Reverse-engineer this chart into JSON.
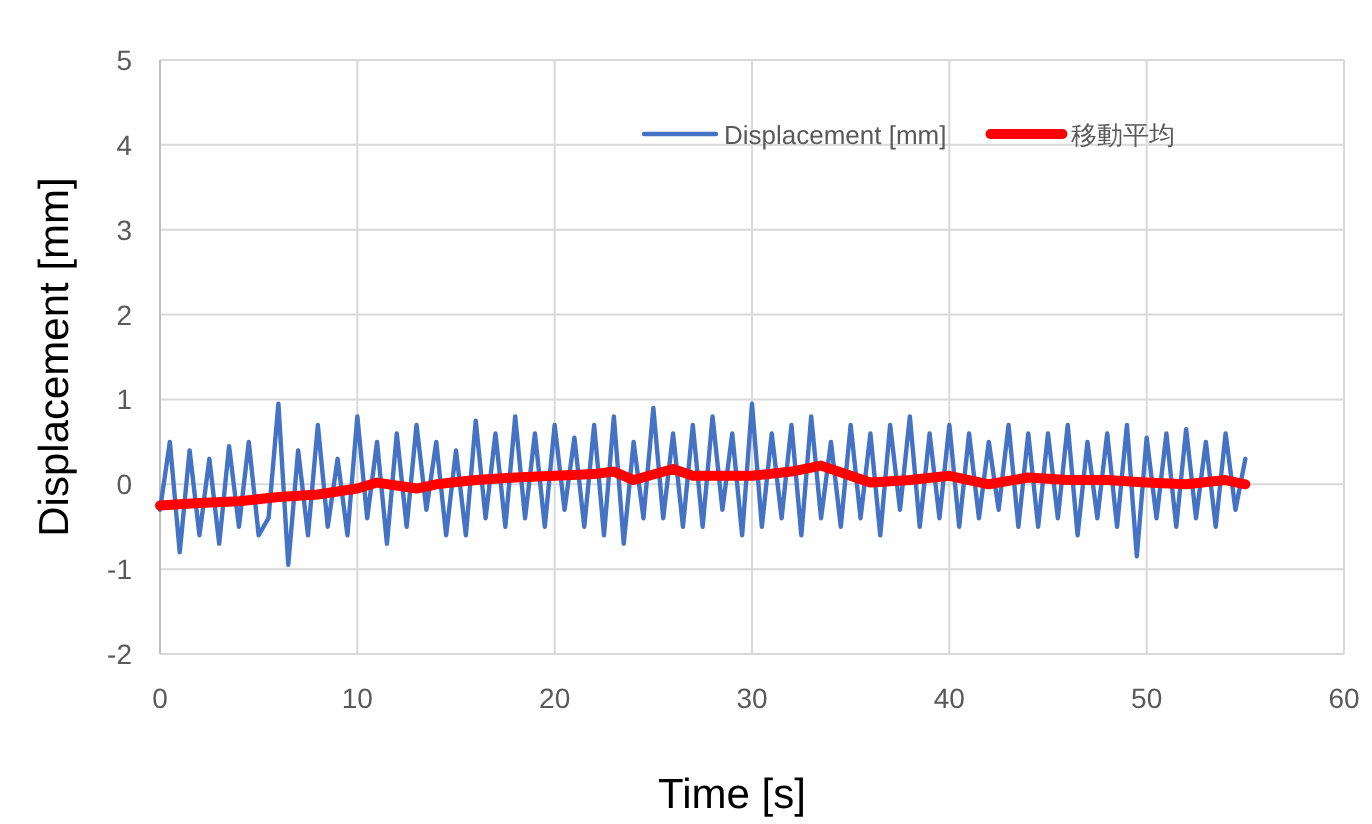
{
  "chart_data": {
    "type": "line",
    "xlabel": "Time [s]",
    "ylabel": "Displacement [mm]",
    "xlim": [
      0,
      60
    ],
    "xticks": [
      0,
      10,
      20,
      30,
      40,
      50,
      60
    ],
    "ylim": [
      -2,
      5
    ],
    "yticks": [
      -2,
      -1,
      0,
      1,
      2,
      3,
      4,
      5
    ],
    "grid": true,
    "legend": "top right",
    "series": [
      {
        "name": "Displacement [mm]",
        "color": "#4472c4",
        "x": [
          0,
          0.5,
          1,
          1.5,
          2,
          2.5,
          3,
          3.5,
          4,
          4.5,
          5,
          5.5,
          6,
          6.5,
          7,
          7.5,
          8,
          8.5,
          9,
          9.5,
          10,
          10.5,
          11,
          11.5,
          12,
          12.5,
          13,
          13.5,
          14,
          14.5,
          15,
          15.5,
          16,
          16.5,
          17,
          17.5,
          18,
          18.5,
          19,
          19.5,
          20,
          20.5,
          21,
          21.5,
          22,
          22.5,
          23,
          23.5,
          24,
          24.5,
          25,
          25.5,
          26,
          26.5,
          27,
          27.5,
          28,
          28.5,
          29,
          29.5,
          30,
          30.5,
          31,
          31.5,
          32,
          32.5,
          33,
          33.5,
          34,
          34.5,
          35,
          35.5,
          36,
          36.5,
          37,
          37.5,
          38,
          38.5,
          39,
          39.5,
          40,
          40.5,
          41,
          41.5,
          42,
          42.5,
          43,
          43.5,
          44,
          44.5,
          45,
          45.5,
          46,
          46.5,
          47,
          47.5,
          48,
          48.5,
          49,
          49.5,
          50,
          50.5,
          51,
          51.5,
          52,
          52.5,
          53,
          53.5,
          54,
          54.5,
          55
        ],
        "values": [
          -0.3,
          0.5,
          -0.8,
          0.4,
          -0.6,
          0.3,
          -0.7,
          0.45,
          -0.5,
          0.5,
          -0.6,
          -0.4,
          0.95,
          -0.95,
          0.4,
          -0.6,
          0.7,
          -0.5,
          0.3,
          -0.6,
          0.8,
          -0.4,
          0.5,
          -0.7,
          0.6,
          -0.5,
          0.7,
          -0.3,
          0.5,
          -0.6,
          0.4,
          -0.6,
          0.75,
          -0.4,
          0.6,
          -0.5,
          0.8,
          -0.4,
          0.6,
          -0.5,
          0.7,
          -0.3,
          0.55,
          -0.5,
          0.7,
          -0.6,
          0.8,
          -0.7,
          0.5,
          -0.4,
          0.9,
          -0.4,
          0.6,
          -0.5,
          0.7,
          -0.5,
          0.8,
          -0.3,
          0.6,
          -0.6,
          0.95,
          -0.5,
          0.6,
          -0.4,
          0.7,
          -0.6,
          0.8,
          -0.4,
          0.5,
          -0.5,
          0.7,
          -0.4,
          0.6,
          -0.6,
          0.7,
          -0.3,
          0.8,
          -0.5,
          0.6,
          -0.4,
          0.7,
          -0.5,
          0.6,
          -0.4,
          0.5,
          -0.3,
          0.7,
          -0.5,
          0.6,
          -0.5,
          0.6,
          -0.4,
          0.7,
          -0.6,
          0.5,
          -0.4,
          0.6,
          -0.5,
          0.7,
          -0.85,
          0.55,
          -0.4,
          0.6,
          -0.5,
          0.65,
          -0.4,
          0.5,
          -0.5,
          0.6,
          -0.3,
          0.3
        ]
      },
      {
        "name": "移動平均",
        "color": "#ff0000",
        "x": [
          0,
          2,
          4,
          6,
          8,
          10,
          11,
          13,
          14,
          16,
          18,
          20,
          22,
          23,
          24,
          26,
          27,
          30,
          32,
          33.5,
          35,
          36,
          38,
          40,
          42,
          44,
          46,
          48,
          50,
          52,
          54,
          55
        ],
        "values": [
          -0.25,
          -0.22,
          -0.2,
          -0.15,
          -0.12,
          -0.05,
          0.02,
          -0.05,
          0.0,
          0.05,
          0.08,
          0.1,
          0.12,
          0.15,
          0.05,
          0.18,
          0.1,
          0.1,
          0.15,
          0.22,
          0.1,
          0.02,
          0.05,
          0.1,
          0.0,
          0.08,
          0.05,
          0.05,
          0.02,
          0.0,
          0.05,
          0.0
        ]
      }
    ]
  }
}
